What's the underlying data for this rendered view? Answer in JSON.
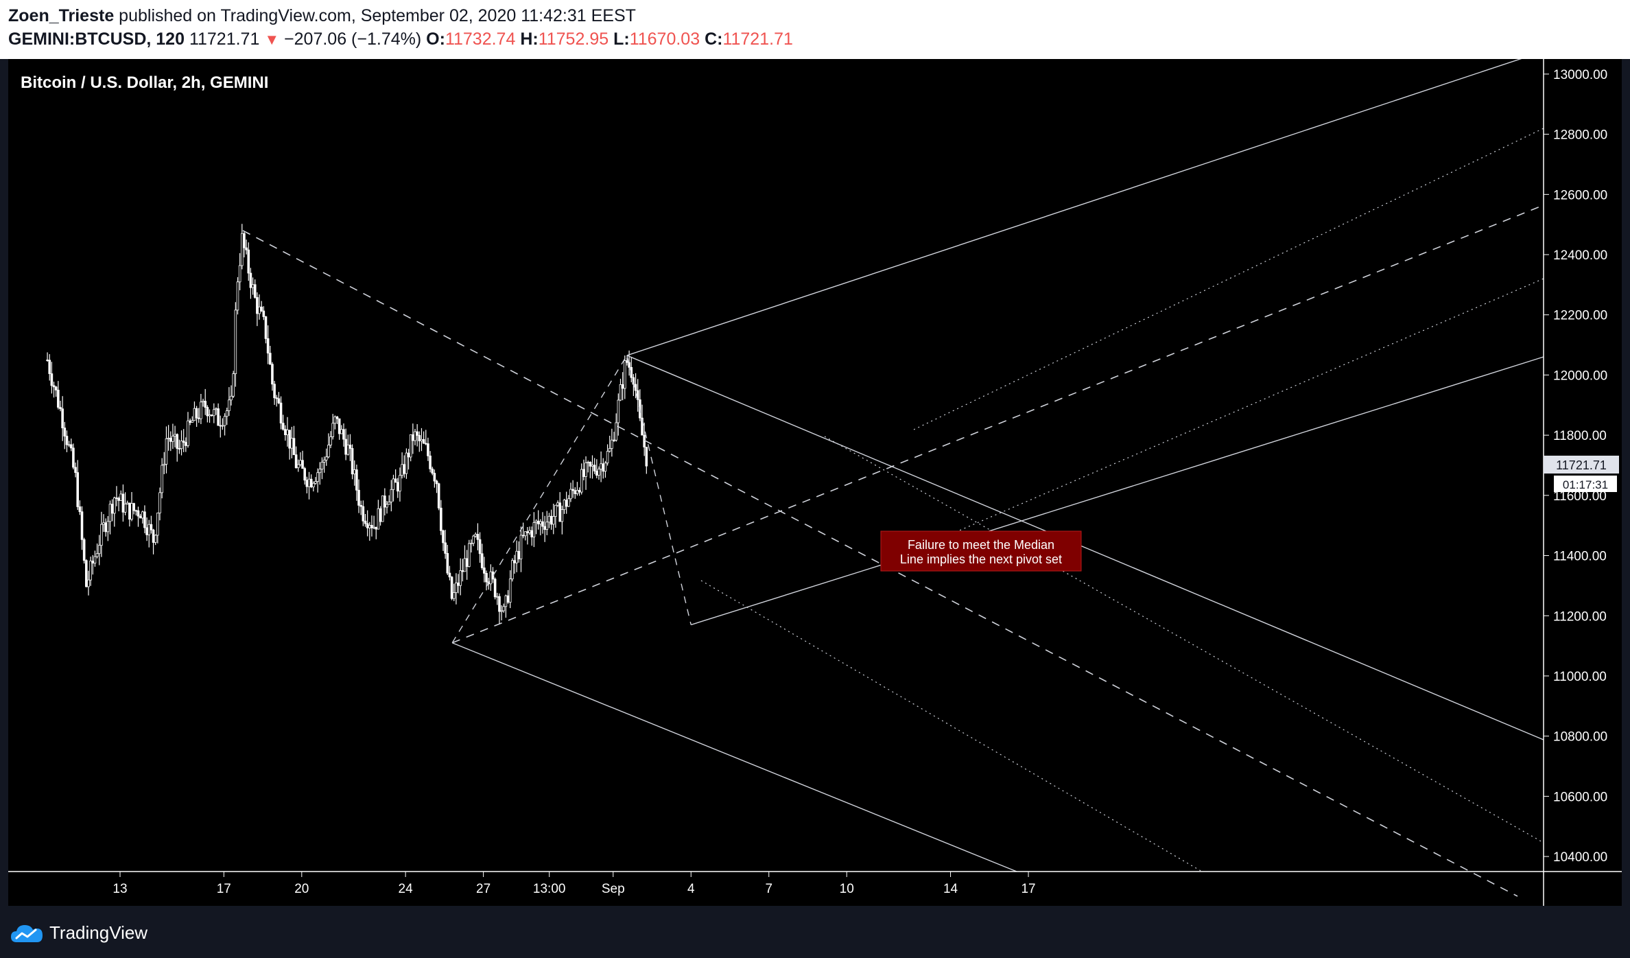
{
  "header": {
    "author": "Zoen_Trieste",
    "published_text": " published on TradingView.com, September 02, 2020 11:42:31 EEST",
    "symbol": "GEMINI:BTCUSD, 120",
    "last": "11721.71",
    "change_arrow": "▼",
    "change": "−207.06 (−1.74%)",
    "open_label": "O:",
    "open": "11732.74",
    "high_label": "H:",
    "high": "11752.95",
    "low_label": "L:",
    "low": "11670.03",
    "close_label": "C:",
    "close": "11721.71"
  },
  "chart_data": {
    "type": "candlestick",
    "title": "Bitcoin / U.S. Dollar, 2h, GEMINI",
    "ylim": [
      10350,
      13050
    ],
    "y_ticks": [
      "13000.00",
      "12800.00",
      "12600.00",
      "12400.00",
      "12200.00",
      "12000.00",
      "11800.00",
      "11600.00",
      "11400.00",
      "11200.00",
      "11000.00",
      "10800.00",
      "10600.00",
      "10400.00"
    ],
    "x_ticks": [
      {
        "label": "13",
        "day": 13
      },
      {
        "label": "17",
        "day": 17
      },
      {
        "label": "20",
        "day": 20
      },
      {
        "label": "24",
        "day": 24
      },
      {
        "label": "27",
        "day": 27
      },
      {
        "label": "13:00",
        "day": 29.54
      },
      {
        "label": "Sep",
        "day": 32
      },
      {
        "label": "4",
        "day": 35
      },
      {
        "label": "7",
        "day": 38
      },
      {
        "label": "10",
        "day": 41
      },
      {
        "label": "14",
        "day": 45
      },
      {
        "label": "17",
        "day": 48
      }
    ],
    "price_path": [
      [
        10.2,
        12050
      ],
      [
        10.8,
        11850
      ],
      [
        11.3,
        11650
      ],
      [
        11.7,
        11300
      ],
      [
        12.2,
        11450
      ],
      [
        12.8,
        11600
      ],
      [
        13.3,
        11550
      ],
      [
        13.8,
        11550
      ],
      [
        14.3,
        11450
      ],
      [
        14.8,
        11800
      ],
      [
        15.3,
        11750
      ],
      [
        15.8,
        11850
      ],
      [
        16.3,
        11900
      ],
      [
        16.8,
        11850
      ],
      [
        17.3,
        11900
      ],
      [
        17.5,
        12300
      ],
      [
        17.7,
        12450
      ],
      [
        18.2,
        12250
      ],
      [
        18.6,
        12150
      ],
      [
        18.9,
        11950
      ],
      [
        19.3,
        11850
      ],
      [
        19.8,
        11700
      ],
      [
        20.3,
        11650
      ],
      [
        20.8,
        11700
      ],
      [
        21.3,
        11850
      ],
      [
        21.8,
        11750
      ],
      [
        22.3,
        11550
      ],
      [
        22.8,
        11500
      ],
      [
        23.3,
        11600
      ],
      [
        23.8,
        11650
      ],
      [
        24.3,
        11800
      ],
      [
        24.8,
        11750
      ],
      [
        25.2,
        11650
      ],
      [
        25.5,
        11400
      ],
      [
        25.8,
        11250
      ],
      [
        26.3,
        11380
      ],
      [
        26.7,
        11450
      ],
      [
        27.1,
        11350
      ],
      [
        27.5,
        11280
      ],
      [
        27.8,
        11200
      ],
      [
        28.1,
        11350
      ],
      [
        28.5,
        11450
      ],
      [
        29.0,
        11500
      ],
      [
        29.5,
        11520
      ],
      [
        30.0,
        11550
      ],
      [
        30.5,
        11620
      ],
      [
        31.0,
        11680
      ],
      [
        31.5,
        11700
      ],
      [
        31.9,
        11750
      ],
      [
        32.2,
        11900
      ],
      [
        32.5,
        12050
      ],
      [
        32.8,
        12000
      ],
      [
        33.0,
        11850
      ],
      [
        33.3,
        11720
      ]
    ],
    "current_price": "11721.71",
    "countdown": "01:17:31",
    "annotation": [
      "Failure to meet the Median",
      "Line implies the next pivot set"
    ]
  },
  "footer": {
    "brand": "TradingView"
  }
}
